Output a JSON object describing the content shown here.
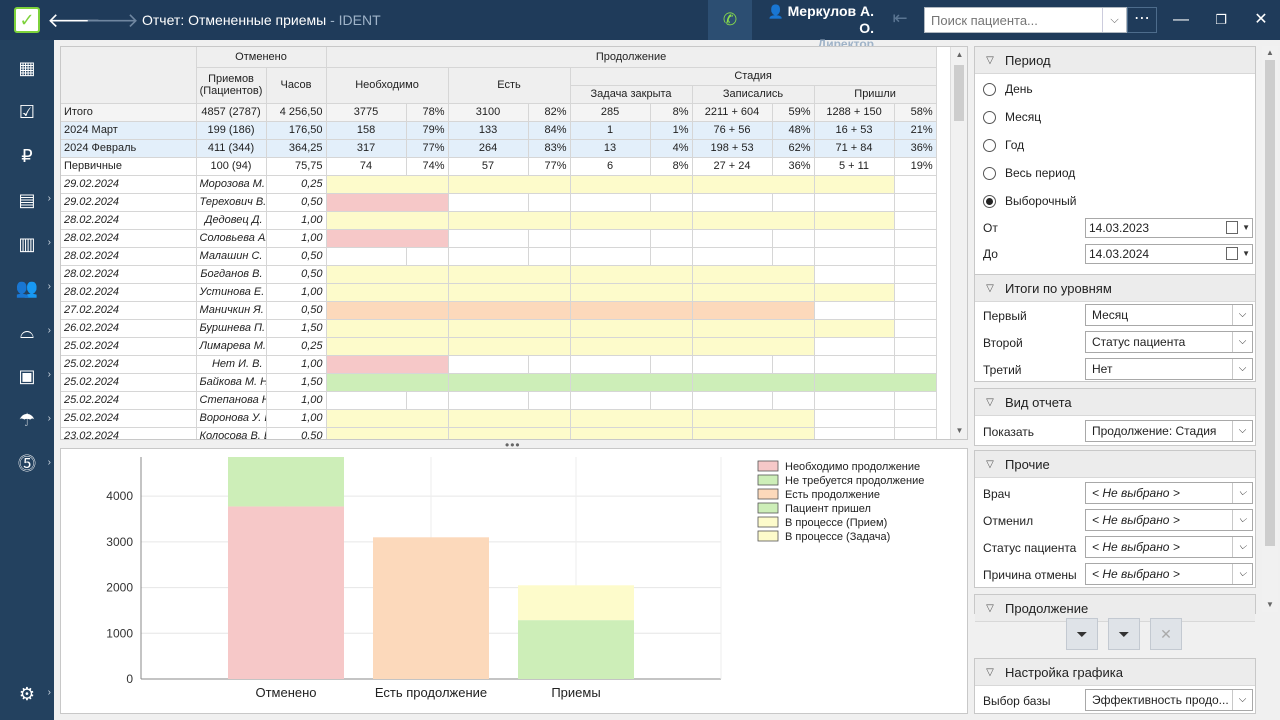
{
  "window": {
    "title": "Отчет: Отмененные приемы",
    "app": " - IDENT",
    "back_glyph": "🡐",
    "forward_glyph": "🡒",
    "minimize_glyph": "—",
    "maximize_glyph": "❐",
    "close_glyph": "✕"
  },
  "user": {
    "name": "Меркулов А. О.",
    "role": "Директор"
  },
  "search": {
    "placeholder": "Поиск пациента..."
  },
  "colors": {
    "titlebar": "#1f3b5a",
    "sidebar": "#23415f",
    "red": "#f6c8c8",
    "green": "#cdeeb8",
    "orange": "#fcd9bb",
    "yellow": "#fdfbcb"
  },
  "sidebar_icons": [
    "schedule-icon",
    "tasks-icon",
    "finance-icon",
    "reports-icon",
    "charts-icon",
    "patients-icon",
    "dental-icon",
    "warehouse-icon",
    "insurance-icon",
    "payments-icon",
    "settings-icon"
  ],
  "table": {
    "headers": {
      "cancelled": "Отменено",
      "continuation": "Продолжение",
      "appointments": "Приемов (Пациентов)",
      "hours": "Часов",
      "needed": "Необходимо",
      "exists": "Есть",
      "stage": "Стадия",
      "task_closed": "Задача закрыта",
      "booked": "Записались",
      "came": "Пришли"
    },
    "summary_rows": [
      {
        "label": "Итого",
        "appts": "4857 (2787)",
        "hours": "4 256,50",
        "needed": "3775",
        "needed_pct": "78%",
        "exists": "3100",
        "exists_pct": "82%",
        "task": "285",
        "task_pct": "8%",
        "booked": "2211 + 604",
        "booked_pct": "59%",
        "came": "1288 + 150",
        "came_pct": "58%",
        "style": "sum"
      },
      {
        "label": "2024 Март",
        "appts": "199 (186)",
        "hours": "176,50",
        "needed": "158",
        "needed_pct": "79%",
        "exists": "133",
        "exists_pct": "84%",
        "task": "1",
        "task_pct": "1%",
        "booked": "76 + 56",
        "booked_pct": "48%",
        "came": "16 + 53",
        "came_pct": "21%",
        "style": "sel"
      },
      {
        "label": "2024 Февраль",
        "appts": "411 (344)",
        "hours": "364,25",
        "needed": "317",
        "needed_pct": "77%",
        "exists": "264",
        "exists_pct": "83%",
        "task": "13",
        "task_pct": "4%",
        "booked": "198 + 53",
        "booked_pct": "62%",
        "came": "71 + 84",
        "came_pct": "36%",
        "style": "sel"
      },
      {
        "label": "Первичные",
        "appts": "100 (94)",
        "hours": "75,75",
        "needed": "74",
        "needed_pct": "74%",
        "exists": "57",
        "exists_pct": "77%",
        "task": "6",
        "task_pct": "8%",
        "booked": "27 + 24",
        "booked_pct": "36%",
        "came": "5 + 11",
        "came_pct": "19%",
        "style": ""
      }
    ],
    "detail_rows": [
      {
        "date": "29.02.2024",
        "doctor": "Морозова М. Г.",
        "hours": "0,25",
        "fill": "yellow",
        "span": 5
      },
      {
        "date": "29.02.2024",
        "doctor": "Терехович В.",
        "hours": "0,50",
        "fill": "red",
        "span": 1
      },
      {
        "date": "28.02.2024",
        "doctor": "Дедовец Д.",
        "hours": "1,00",
        "fill": "yellow",
        "span": 5
      },
      {
        "date": "28.02.2024",
        "doctor": "Соловьева А. В.",
        "hours": "1,00",
        "fill": "red",
        "span": 1
      },
      {
        "date": "28.02.2024",
        "doctor": "Малашин С.",
        "hours": "0,50",
        "fill": "none",
        "span": 0
      },
      {
        "date": "28.02.2024",
        "doctor": "Богданов В.",
        "hours": "0,50",
        "fill": "yellow",
        "span": 4
      },
      {
        "date": "28.02.2024",
        "doctor": "Устинова Е. С.",
        "hours": "1,00",
        "fill": "yellow",
        "span": 5
      },
      {
        "date": "27.02.2024",
        "doctor": "Маничкин Я. Р.",
        "hours": "0,50",
        "fill": "orange",
        "span": 4
      },
      {
        "date": "26.02.2024",
        "doctor": "Буршнева П. Ю.",
        "hours": "1,50",
        "fill": "yellow",
        "span": 5
      },
      {
        "date": "25.02.2024",
        "doctor": "Лимарева М.",
        "hours": "0,25",
        "fill": "yellow",
        "span": 4
      },
      {
        "date": "25.02.2024",
        "doctor": "Нет И. В.",
        "hours": "1,00",
        "fill": "red",
        "span": 1
      },
      {
        "date": "25.02.2024",
        "doctor": "Байкова М. Н.",
        "hours": "1,50",
        "fill": "green",
        "span": 6
      },
      {
        "date": "25.02.2024",
        "doctor": "Степанова Н.",
        "hours": "1,00",
        "fill": "none",
        "span": 0
      },
      {
        "date": "25.02.2024",
        "doctor": "Воронова У. И.",
        "hours": "1,00",
        "fill": "yellow",
        "span": 4
      },
      {
        "date": "23.02.2024",
        "doctor": "Колосова В. Е.",
        "hours": "0,50",
        "fill": "yellow",
        "span": 4
      }
    ]
  },
  "chart_data": {
    "type": "bar",
    "stacked": true,
    "categories": [
      "Отменено",
      "Есть продолжение",
      "Приемы"
    ],
    "series": [
      {
        "name": "Необходимо продолжение",
        "color": "#f6c8c8",
        "values": [
          3775,
          0,
          0
        ]
      },
      {
        "name": "Не требуется продолжение",
        "color": "#cdeeb8",
        "values": [
          1082,
          0,
          0
        ]
      },
      {
        "name": "Есть продолжение",
        "color": "#fcd9bb",
        "values": [
          0,
          3100,
          0
        ]
      },
      {
        "name": "Пациент пришел",
        "color": "#cdeeb8",
        "values": [
          0,
          0,
          1288
        ]
      },
      {
        "name": "В процессе (Прием)",
        "color": "#fdfbcb",
        "values": [
          0,
          0,
          762
        ]
      },
      {
        "name": "В процессе (Задача)",
        "color": "#fdfbcb",
        "values": [
          0,
          0,
          0
        ]
      }
    ],
    "yticks": [
      0,
      1000,
      2000,
      3000,
      4000
    ],
    "ylim": [
      0,
      4857
    ],
    "grid": true,
    "legend": "top-right"
  },
  "filters": {
    "period": {
      "title": "Период",
      "options": [
        "День",
        "Месяц",
        "Год",
        "Весь период",
        "Выборочный"
      ],
      "selected_index": 4,
      "from_label": "От",
      "from": "14.03.2023",
      "to_label": "До",
      "to": "14.03.2024"
    },
    "levels": {
      "title": "Итоги по уровням",
      "first_label": "Первый",
      "first": "Месяц",
      "second_label": "Второй",
      "second": "Статус пациента",
      "third_label": "Третий",
      "third": "Нет"
    },
    "view": {
      "title": "Вид отчета",
      "show_label": "Показать",
      "show": "Продолжение: Стадия"
    },
    "other": {
      "title": "Прочие",
      "doctor_label": "Врач",
      "doctor": "< Не выбрано >",
      "cancelled_by_label": "Отменил",
      "cancelled_by": "< Не выбрано >",
      "status_label": "Статус пациента",
      "status": "< Не выбрано >",
      "reason_label": "Причина отмены",
      "reason": "< Не выбрано >"
    },
    "continuation": {
      "title": "Продолжение"
    },
    "chart_settings": {
      "title": "Настройка графика",
      "base_label": "Выбор базы",
      "base": "Эффективность продо..."
    }
  }
}
